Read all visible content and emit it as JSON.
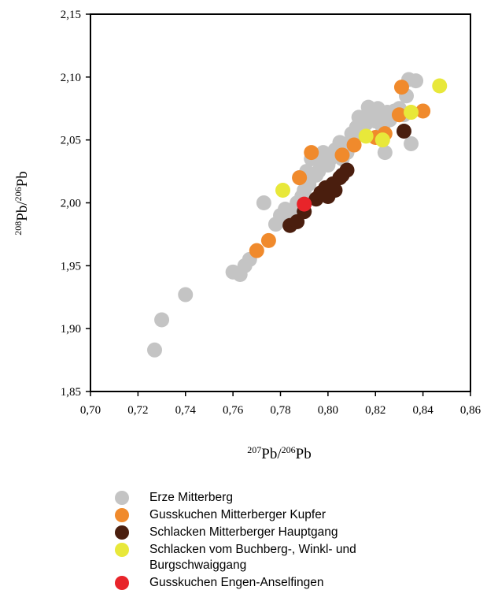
{
  "chart_data": {
    "type": "scatter",
    "title": "",
    "xlabel_sup": "207",
    "xlabel_mid": "Pb/",
    "xlabel_sup2": "206",
    "xlabel_end": "Pb",
    "ylabel_sup": "208",
    "ylabel_mid": "Pb/",
    "ylabel_sup2": "206",
    "ylabel_end": "Pb",
    "xlim": [
      0.7,
      0.86
    ],
    "ylim": [
      1.85,
      2.15
    ],
    "xticks": [
      0.7,
      0.72,
      0.74,
      0.76,
      0.78,
      0.8,
      0.82,
      0.84,
      0.86
    ],
    "yticks": [
      1.85,
      1.9,
      1.95,
      2.0,
      2.05,
      2.1,
      2.15
    ],
    "xtick_labels": [
      "0,70",
      "0,72",
      "0,74",
      "0,76",
      "0,78",
      "0,80",
      "0,82",
      "0,84",
      "0,86"
    ],
    "ytick_labels": [
      "1,85",
      "1,90",
      "1,95",
      "2,00",
      "2,05",
      "2,10",
      "2,15"
    ],
    "legend_placement": "bottom",
    "series": [
      {
        "name": "Erze Mitterberg",
        "color": "#c4c4c4",
        "points": [
          [
            0.727,
            1.883
          ],
          [
            0.73,
            1.907
          ],
          [
            0.74,
            1.927
          ],
          [
            0.76,
            1.945
          ],
          [
            0.763,
            1.943
          ],
          [
            0.765,
            1.95
          ],
          [
            0.767,
            1.955
          ],
          [
            0.773,
            2.0
          ],
          [
            0.778,
            1.983
          ],
          [
            0.78,
            1.99
          ],
          [
            0.782,
            1.995
          ],
          [
            0.785,
            1.99
          ],
          [
            0.787,
            2.0
          ],
          [
            0.788,
            2.02
          ],
          [
            0.79,
            2.01
          ],
          [
            0.791,
            2.025
          ],
          [
            0.792,
            2.015
          ],
          [
            0.793,
            2.035
          ],
          [
            0.795,
            2.022
          ],
          [
            0.797,
            2.03
          ],
          [
            0.798,
            2.04
          ],
          [
            0.8,
            2.03
          ],
          [
            0.801,
            2.035
          ],
          [
            0.803,
            2.042
          ],
          [
            0.805,
            2.048
          ],
          [
            0.806,
            2.035
          ],
          [
            0.808,
            2.04
          ],
          [
            0.81,
            2.055
          ],
          [
            0.812,
            2.06
          ],
          [
            0.813,
            2.068
          ],
          [
            0.815,
            2.055
          ],
          [
            0.816,
            2.063
          ],
          [
            0.817,
            2.076
          ],
          [
            0.818,
            2.07
          ],
          [
            0.82,
            2.065
          ],
          [
            0.821,
            2.075
          ],
          [
            0.822,
            2.068
          ],
          [
            0.823,
            2.06
          ],
          [
            0.824,
            2.04
          ],
          [
            0.825,
            2.072
          ],
          [
            0.826,
            2.066
          ],
          [
            0.828,
            2.073
          ],
          [
            0.83,
            2.075
          ],
          [
            0.832,
            2.07
          ],
          [
            0.833,
            2.085
          ],
          [
            0.834,
            2.098
          ],
          [
            0.835,
            2.047
          ],
          [
            0.837,
            2.097
          ],
          [
            0.81,
            2.05
          ],
          [
            0.814,
            2.058
          ],
          [
            0.796,
            2.025
          ],
          [
            0.789,
            2.005
          ],
          [
            0.783,
            1.985
          ]
        ]
      },
      {
        "name": "Gusskuchen Mitterberger Kupfer",
        "color": "#f08a2c",
        "points": [
          [
            0.77,
            1.962
          ],
          [
            0.775,
            1.97
          ],
          [
            0.788,
            2.02
          ],
          [
            0.793,
            2.04
          ],
          [
            0.806,
            2.038
          ],
          [
            0.811,
            2.046
          ],
          [
            0.82,
            2.052
          ],
          [
            0.824,
            2.055
          ],
          [
            0.83,
            2.07
          ],
          [
            0.831,
            2.092
          ],
          [
            0.84,
            2.073
          ]
        ]
      },
      {
        "name": "Schlacken Mitterberger Hauptgang",
        "color": "#4a1e0e",
        "points": [
          [
            0.784,
            1.982
          ],
          [
            0.787,
            1.985
          ],
          [
            0.79,
            1.993
          ],
          [
            0.795,
            2.003
          ],
          [
            0.797,
            2.008
          ],
          [
            0.799,
            2.012
          ],
          [
            0.8,
            2.005
          ],
          [
            0.802,
            2.015
          ],
          [
            0.803,
            2.01
          ],
          [
            0.805,
            2.02
          ],
          [
            0.806,
            2.022
          ],
          [
            0.808,
            2.026
          ],
          [
            0.832,
            2.057
          ]
        ]
      },
      {
        "name": "Schlacken vom Buchberg-, Winkl- und Burgschwaiggang",
        "color": "#e8e83a",
        "points": [
          [
            0.781,
            2.01
          ],
          [
            0.816,
            2.053
          ],
          [
            0.823,
            2.05
          ],
          [
            0.835,
            2.072
          ],
          [
            0.847,
            2.093
          ]
        ]
      },
      {
        "name": "Gusskuchen Engen-Anselfingen",
        "color": "#e8242a",
        "points": [
          [
            0.79,
            1.999
          ]
        ]
      }
    ]
  },
  "legend": {
    "items": [
      {
        "label_line1": "Erze Mitterberg",
        "label_line2": "",
        "color": "#c4c4c4"
      },
      {
        "label_line1": "Gusskuchen Mitterberger Kupfer",
        "label_line2": "",
        "color": "#f08a2c"
      },
      {
        "label_line1": "Schlacken Mitterberger Hauptgang",
        "label_line2": "",
        "color": "#4a1e0e"
      },
      {
        "label_line1": "Schlacken vom Buchberg-, Winkl- und",
        "label_line2": "Burgschwaiggang",
        "color": "#e8e83a"
      },
      {
        "label_line1": "Gusskuchen Engen-Anselfingen",
        "label_line2": "",
        "color": "#e8242a"
      }
    ]
  }
}
